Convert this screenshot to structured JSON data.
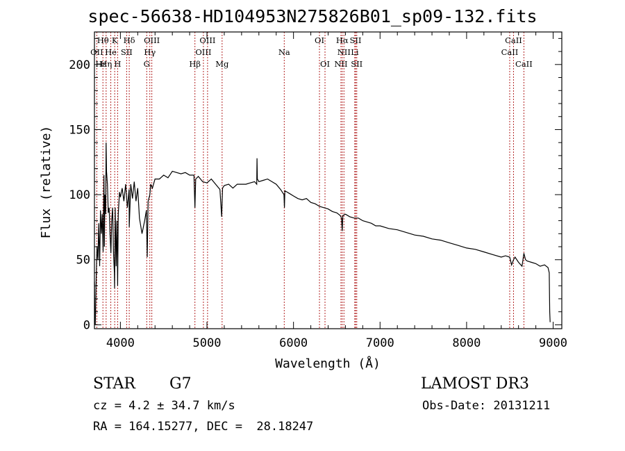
{
  "chart_data": {
    "type": "line",
    "title": "spec-56638-HD104953N275826B01_sp09-132.fits",
    "xlabel": "Wavelength (Å)",
    "ylabel": "Flux (relative)",
    "xlim": [
      3700,
      9100
    ],
    "ylim": [
      -3,
      225
    ],
    "xticks": [
      4000,
      5000,
      6000,
      7000,
      8000,
      9000
    ],
    "yticks": [
      0,
      50,
      100,
      150,
      200
    ],
    "series": [
      {
        "name": "flux",
        "x": [
          3700,
          3705,
          3710,
          3720,
          3730,
          3740,
          3750,
          3760,
          3770,
          3780,
          3790,
          3800,
          3810,
          3815,
          3820,
          3830,
          3835,
          3840,
          3850,
          3860,
          3870,
          3880,
          3890,
          3900,
          3910,
          3920,
          3930,
          3933,
          3940,
          3950,
          3960,
          3968,
          3975,
          3990,
          4000,
          4020,
          4040,
          4060,
          4080,
          4100,
          4102,
          4120,
          4140,
          4160,
          4180,
          4200,
          4220,
          4250,
          4280,
          4300,
          4310,
          4320,
          4340,
          4350,
          4370,
          4400,
          4450,
          4500,
          4550,
          4600,
          4650,
          4700,
          4750,
          4800,
          4850,
          4861,
          4870,
          4900,
          4950,
          5000,
          5050,
          5100,
          5150,
          5170,
          5180,
          5200,
          5250,
          5300,
          5350,
          5400,
          5450,
          5500,
          5550,
          5575,
          5578,
          5582,
          5600,
          5650,
          5700,
          5750,
          5800,
          5850,
          5890,
          5895,
          5900,
          5950,
          6000,
          6050,
          6100,
          6150,
          6200,
          6250,
          6300,
          6350,
          6400,
          6450,
          6500,
          6540,
          6555,
          6563,
          6570,
          6600,
          6650,
          6700,
          6750,
          6800,
          6850,
          6900,
          6950,
          7000,
          7100,
          7200,
          7300,
          7400,
          7500,
          7600,
          7700,
          7800,
          7900,
          8000,
          8100,
          8200,
          8300,
          8400,
          8450,
          8498,
          8520,
          8542,
          8560,
          8600,
          8640,
          8662,
          8680,
          8700,
          8750,
          8800,
          8850,
          8900,
          8940,
          8955,
          8960,
          8965
        ],
        "values": [
          33,
          5,
          0,
          35,
          60,
          50,
          78,
          45,
          88,
          70,
          85,
          56,
          115,
          60,
          100,
          85,
          140,
          118,
          108,
          86,
          90,
          70,
          55,
          80,
          90,
          56,
          40,
          28,
          90,
          45,
          80,
          30,
          85,
          102,
          98,
          105,
          95,
          108,
          90,
          104,
          75,
          108,
          97,
          110,
          95,
          105,
          82,
          70,
          80,
          88,
          52,
          95,
          100,
          108,
          105,
          112,
          112,
          115,
          113,
          118,
          117,
          116,
          117,
          115,
          115,
          90,
          112,
          114,
          110,
          109,
          112,
          108,
          104,
          83,
          105,
          107,
          108,
          105,
          108,
          108,
          108,
          109,
          110,
          108,
          128,
          112,
          110,
          111,
          112,
          110,
          108,
          104,
          100,
          90,
          103,
          101,
          99,
          97,
          96,
          97,
          94,
          93,
          91,
          90,
          89,
          87,
          86,
          84,
          82,
          72,
          84,
          85,
          83,
          82,
          82,
          80,
          79,
          78,
          76,
          76,
          74,
          73,
          71,
          69,
          68,
          66,
          65,
          63,
          61,
          59,
          58,
          56,
          54,
          52,
          53,
          52,
          46,
          50,
          52,
          48,
          45,
          55,
          50,
          49,
          48,
          47,
          45,
          46,
          44,
          40,
          10,
          2
        ]
      }
    ],
    "lines": [
      {
        "label": "Hθ",
        "wl": 3798
      },
      {
        "label": "OII",
        "wl": 3727
      },
      {
        "label": "Hη",
        "wl": 3835
      },
      {
        "label": "He",
        "wl": 3889
      },
      {
        "label": "K",
        "wl": 3934
      },
      {
        "label": "H",
        "wl": 3968
      },
      {
        "label": "SII",
        "wl": 4072
      },
      {
        "label": "Hδ",
        "wl": 4102
      },
      {
        "label": "OIII",
        "wl": 4363
      },
      {
        "label": "Hγ",
        "wl": 4340
      },
      {
        "label": "G",
        "wl": 4304
      },
      {
        "label": "Hβ",
        "wl": 4861
      },
      {
        "label": "OIII",
        "wl": 4959
      },
      {
        "label": "OIII",
        "wl": 5007
      },
      {
        "label": "Mg",
        "wl": 5175
      },
      {
        "label": "Na",
        "wl": 5893
      },
      {
        "label": "OI",
        "wl": 6300
      },
      {
        "label": "OI",
        "wl": 6364
      },
      {
        "label": "Hα",
        "wl": 6563
      },
      {
        "label": "NII",
        "wl": 6548
      },
      {
        "label": "NII",
        "wl": 6583
      },
      {
        "label": "SII",
        "wl": 6717
      },
      {
        "label": "SII",
        "wl": 6731
      },
      {
        "label": "Li",
        "wl": 6708
      },
      {
        "label": "CaII",
        "wl": 8498
      },
      {
        "label": "CaII",
        "wl": 8542
      },
      {
        "label": "CaII",
        "wl": 8662
      }
    ],
    "line_labels": [
      {
        "text": "Hθ",
        "wl": 3798,
        "row": 0
      },
      {
        "text": "K",
        "wl": 3934,
        "row": 0
      },
      {
        "text": "Hδ",
        "wl": 4102,
        "row": 0
      },
      {
        "text": "OIII",
        "wl": 4363,
        "row": 0
      },
      {
        "text": "OIII",
        "wl": 5007,
        "row": 0
      },
      {
        "text": "OI",
        "wl": 6300,
        "row": 0
      },
      {
        "text": "Hα",
        "wl": 6563,
        "row": 0
      },
      {
        "text": "SII",
        "wl": 6717,
        "row": 0
      },
      {
        "text": "CaII",
        "wl": 8542,
        "row": 0
      },
      {
        "text": "OII",
        "wl": 3727,
        "row": 1
      },
      {
        "text": "He",
        "wl": 3889,
        "row": 1
      },
      {
        "text": "SII",
        "wl": 4072,
        "row": 1
      },
      {
        "text": "Hγ",
        "wl": 4340,
        "row": 1
      },
      {
        "text": "OIII",
        "wl": 4959,
        "row": 1
      },
      {
        "text": "NII",
        "wl": 6583,
        "row": 1
      },
      {
        "text": "Li",
        "wl": 6708,
        "row": 1
      },
      {
        "text": "CaII",
        "wl": 8498,
        "row": 1
      },
      {
        "text": "Hε",
        "wl": 3775,
        "row": 2
      },
      {
        "text": "Hη",
        "wl": 3835,
        "row": 2
      },
      {
        "text": "H",
        "wl": 3968,
        "row": 2
      },
      {
        "text": "G",
        "wl": 4304,
        "row": 2
      },
      {
        "text": "Hβ",
        "wl": 4861,
        "row": 2
      },
      {
        "text": "Mg",
        "wl": 5175,
        "row": 2
      },
      {
        "text": "Na",
        "wl": 5893,
        "row": 1
      },
      {
        "text": "OI",
        "wl": 6364,
        "row": 2
      },
      {
        "text": "NII",
        "wl": 6548,
        "row": 2
      },
      {
        "text": "SII",
        "wl": 6731,
        "row": 2
      },
      {
        "text": "CaII",
        "wl": 8662,
        "row": 2
      }
    ]
  },
  "info": {
    "class": "STAR",
    "subclass": "G7",
    "survey": "LAMOST DR3",
    "cz": "cz = 4.2 ± 34.7 km/s",
    "obs_date": "Obs-Date: 20131211",
    "coords": "RA = 164.15277, DEC =  28.18247"
  },
  "colors": {
    "line_marker": "#b22222",
    "spectrum": "#000000"
  }
}
